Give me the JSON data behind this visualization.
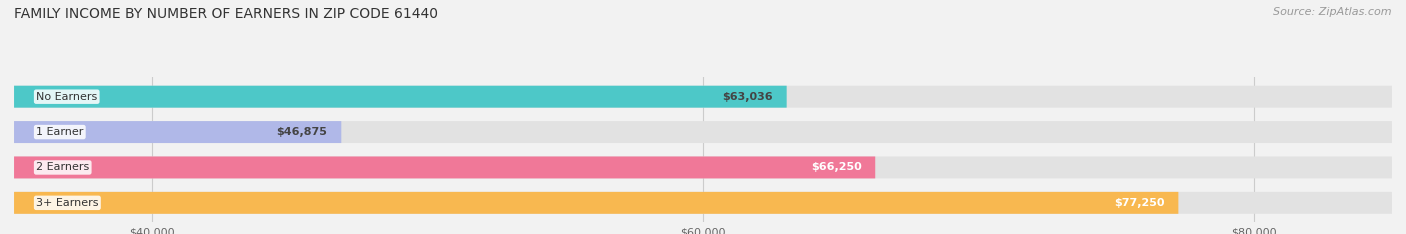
{
  "title": "FAMILY INCOME BY NUMBER OF EARNERS IN ZIP CODE 61440",
  "source": "Source: ZipAtlas.com",
  "categories": [
    "No Earners",
    "1 Earner",
    "2 Earners",
    "3+ Earners"
  ],
  "values": [
    63036,
    46875,
    66250,
    77250
  ],
  "bar_colors": [
    "#4dc8c8",
    "#b0b8e8",
    "#f07898",
    "#f8b850"
  ],
  "bar_labels": [
    "$63,036",
    "$46,875",
    "$66,250",
    "$77,250"
  ],
  "label_colors": [
    "#444444",
    "#444444",
    "#ffffff",
    "#ffffff"
  ],
  "xlim": [
    35000,
    85000
  ],
  "xticks": [
    40000,
    60000,
    80000
  ],
  "xtick_labels": [
    "$40,000",
    "$60,000",
    "$80,000"
  ],
  "background_color": "#f2f2f2",
  "bar_bg_color": "#e2e2e2",
  "title_fontsize": 10,
  "source_fontsize": 8
}
